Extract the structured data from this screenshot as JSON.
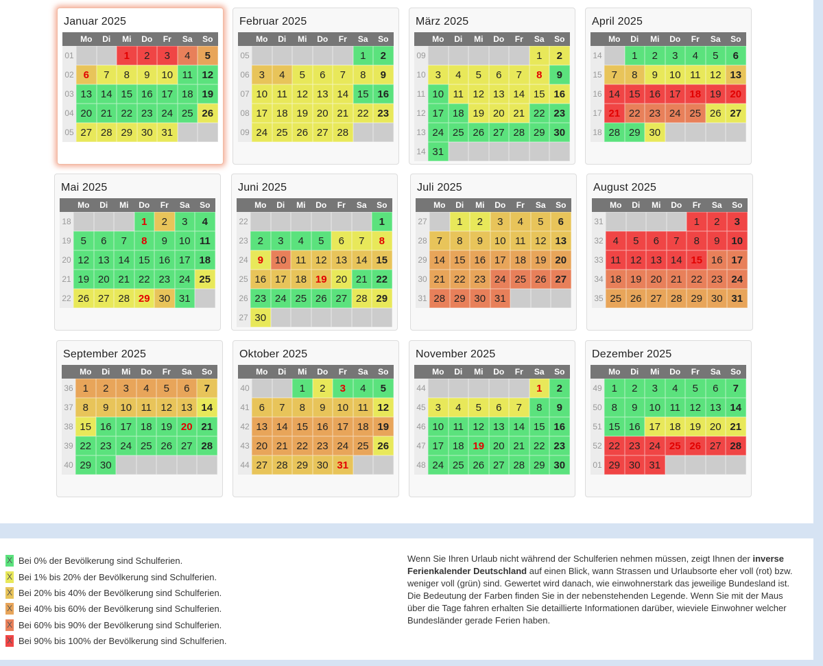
{
  "colors": {
    "level_0": "#5be27d",
    "level_1": "#e8e85a",
    "level_2": "#e8c45a",
    "level_3": "#e8a55a",
    "level_4": "#e8805a",
    "level_5": "#f04545",
    "empty": "#cccccc",
    "holiday_text": "#e20000"
  },
  "weekdays": [
    "Mo",
    "Di",
    "Mi",
    "Do",
    "Fr",
    "Sa",
    "So"
  ],
  "months": [
    {
      "title": "Januar 2025",
      "start": 2,
      "days": 31,
      "first_week": "01",
      "current": true,
      "levels": [
        5,
        5,
        5,
        4,
        3,
        2,
        1,
        1,
        1,
        1,
        0,
        0,
        0,
        0,
        0,
        0,
        0,
        0,
        0,
        0,
        0,
        0,
        0,
        0,
        0,
        1,
        1,
        1,
        1,
        1,
        1
      ],
      "holidays": [
        1,
        6
      ]
    },
    {
      "title": "Februar 2025",
      "start": 5,
      "days": 28,
      "first_week": "05",
      "levels": [
        0,
        0,
        2,
        2,
        1,
        1,
        1,
        1,
        1,
        1,
        1,
        1,
        1,
        1,
        0,
        0,
        1,
        1,
        1,
        1,
        1,
        1,
        1,
        1,
        1,
        1,
        1,
        1
      ],
      "holidays": []
    },
    {
      "title": "März 2025",
      "start": 5,
      "days": 31,
      "first_week": "09",
      "levels": [
        1,
        1,
        1,
        1,
        1,
        1,
        1,
        1,
        0,
        0,
        1,
        1,
        1,
        1,
        1,
        1,
        0,
        0,
        1,
        1,
        1,
        0,
        0,
        0,
        0,
        0,
        0,
        0,
        0,
        0,
        0
      ],
      "holidays": [
        8
      ]
    },
    {
      "title": "April 2025",
      "start": 1,
      "days": 30,
      "first_week": "14",
      "levels": [
        0,
        0,
        0,
        0,
        0,
        0,
        2,
        2,
        1,
        1,
        1,
        1,
        2,
        5,
        5,
        5,
        5,
        5,
        5,
        5,
        5,
        4,
        4,
        4,
        4,
        1,
        1,
        0,
        0,
        1
      ],
      "holidays": [
        18,
        20,
        21
      ]
    },
    {
      "title": "Mai 2025",
      "start": 3,
      "days": 31,
      "first_week": "18",
      "levels": [
        0,
        2,
        0,
        0,
        0,
        0,
        0,
        0,
        0,
        0,
        0,
        0,
        0,
        0,
        0,
        0,
        0,
        0,
        0,
        0,
        0,
        0,
        0,
        0,
        1,
        1,
        1,
        1,
        1,
        2,
        0
      ],
      "holidays": [
        1,
        8,
        29
      ]
    },
    {
      "title": "Juni 2025",
      "start": 6,
      "days": 30,
      "first_week": "22",
      "levels": [
        0,
        0,
        0,
        0,
        0,
        1,
        1,
        1,
        1,
        4,
        2,
        2,
        2,
        2,
        2,
        2,
        2,
        2,
        2,
        1,
        0,
        0,
        0,
        0,
        0,
        0,
        0,
        1,
        1,
        1
      ],
      "holidays": [
        8,
        9,
        19
      ]
    },
    {
      "title": "Juli 2025",
      "start": 1,
      "days": 31,
      "first_week": "27",
      "levels": [
        1,
        1,
        2,
        2,
        2,
        2,
        2,
        2,
        2,
        2,
        2,
        2,
        2,
        3,
        3,
        3,
        3,
        3,
        3,
        3,
        3,
        3,
        3,
        4,
        4,
        4,
        4,
        4,
        4,
        4,
        4
      ],
      "holidays": []
    },
    {
      "title": "August 2025",
      "start": 4,
      "days": 31,
      "first_week": "31",
      "levels": [
        5,
        5,
        5,
        5,
        5,
        5,
        5,
        5,
        5,
        5,
        5,
        5,
        5,
        5,
        5,
        4,
        4,
        4,
        4,
        4,
        4,
        4,
        4,
        4,
        3,
        3,
        3,
        3,
        3,
        3,
        3
      ],
      "holidays": [
        15
      ]
    },
    {
      "title": "September 2025",
      "start": 0,
      "days": 30,
      "first_week": "36",
      "levels": [
        3,
        3,
        3,
        3,
        3,
        3,
        2,
        2,
        2,
        2,
        2,
        2,
        2,
        1,
        1,
        0,
        0,
        0,
        0,
        0,
        0,
        0,
        0,
        0,
        0,
        0,
        0,
        0,
        0,
        0
      ],
      "holidays": [
        20
      ]
    },
    {
      "title": "Oktober 2025",
      "start": 2,
      "days": 31,
      "first_week": "40",
      "levels": [
        0,
        1,
        0,
        0,
        0,
        2,
        2,
        2,
        2,
        2,
        2,
        1,
        3,
        3,
        3,
        3,
        3,
        3,
        3,
        3,
        3,
        3,
        3,
        3,
        3,
        1,
        2,
        2,
        2,
        2,
        2
      ],
      "holidays": [
        3,
        31
      ]
    },
    {
      "title": "November 2025",
      "start": 5,
      "days": 30,
      "first_week": "44",
      "levels": [
        1,
        0,
        1,
        1,
        1,
        1,
        1,
        0,
        0,
        0,
        0,
        0,
        0,
        0,
        0,
        0,
        0,
        0,
        0,
        0,
        0,
        0,
        0,
        0,
        0,
        0,
        0,
        0,
        0,
        0
      ],
      "holidays": [
        1,
        19
      ]
    },
    {
      "title": "Dezember 2025",
      "start": 0,
      "days": 31,
      "first_week": "49",
      "levels": [
        0,
        0,
        0,
        0,
        0,
        0,
        0,
        0,
        0,
        0,
        0,
        0,
        0,
        0,
        0,
        0,
        1,
        1,
        1,
        1,
        1,
        5,
        5,
        5,
        5,
        5,
        5,
        5,
        5,
        5,
        5
      ],
      "holidays": [
        25,
        26
      ]
    }
  ],
  "legend": [
    {
      "mark": "X",
      "label": "Bei 0% der Bevölkerung sind Schulferien."
    },
    {
      "mark": "X",
      "label": "Bei 1% bis 20% der Bevölkerung sind Schulferien."
    },
    {
      "mark": "X",
      "label": "Bei 20% bis 40% der Bevölkerung sind Schulferien."
    },
    {
      "mark": "X",
      "label": "Bei 40% bis 60% der Bevölkerung sind Schulferien."
    },
    {
      "mark": "X",
      "label": "Bei 60% bis 90% der Bevölkerung sind Schulferien."
    },
    {
      "mark": "X",
      "label": "Bei 90% bis 100% der Bevölkerung sind Schulferien."
    }
  ],
  "info": {
    "text_before": "Wenn Sie Ihren Urlaub nicht während der Schulferien nehmen müssen, zeigt Ihnen der ",
    "text_bold": "inverse Ferienkalender Deutschland",
    "text_after": " auf einen Blick, wann Strassen und Urlaubsorte eher voll (rot) bzw. weniger voll (grün) sind. Gewertet wird danach, wie einwohnerstark das jeweilige Bundesland ist. Die Bedeutung der Farben finden Sie in der nebenstehenden Legende. Wenn Sie mit der Maus über die Tage fahren erhalten Sie detaillierte Informationen darüber, wieviele Einwohner welcher Bundesländer gerade Ferien haben."
  }
}
